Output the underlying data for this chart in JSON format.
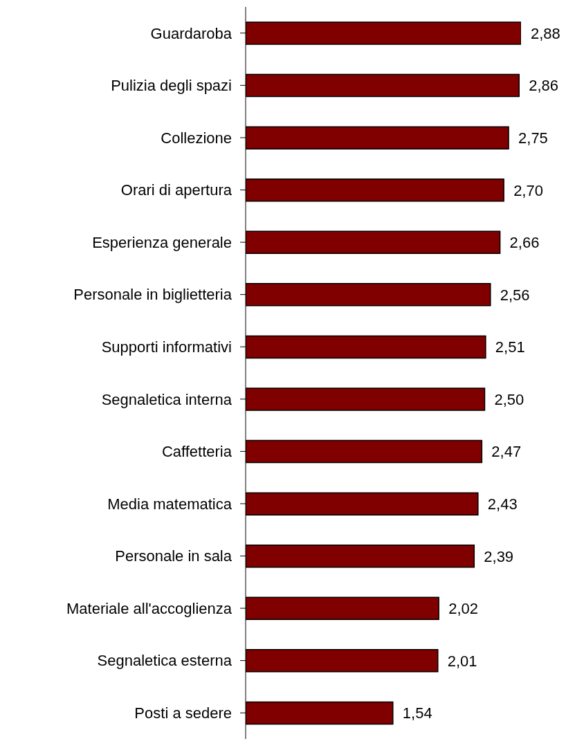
{
  "chart_data": {
    "type": "bar",
    "orientation": "horizontal",
    "categories": [
      "Guardaroba",
      "Pulizia degli spazi",
      "Collezione",
      "Orari di apertura",
      "Esperienza generale",
      "Personale in biglietteria",
      "Supporti informativi",
      "Segnaletica interna",
      "Caffetteria",
      "Media matematica",
      "Personale in sala",
      "Materiale all'accoglienza",
      "Segnaletica esterna",
      "Posti a sedere"
    ],
    "values": [
      2.88,
      2.86,
      2.75,
      2.7,
      2.66,
      2.56,
      2.51,
      2.5,
      2.47,
      2.43,
      2.39,
      2.02,
      2.01,
      1.54
    ],
    "value_labels": [
      "2,88",
      "2,86",
      "2,75",
      "2,70",
      "2,66",
      "2,56",
      "2,51",
      "2,50",
      "2,47",
      "2,43",
      "2,39",
      "2,02",
      "2,01",
      "1,54"
    ],
    "color": "#800000",
    "grid": false,
    "tick_labels": "y"
  }
}
